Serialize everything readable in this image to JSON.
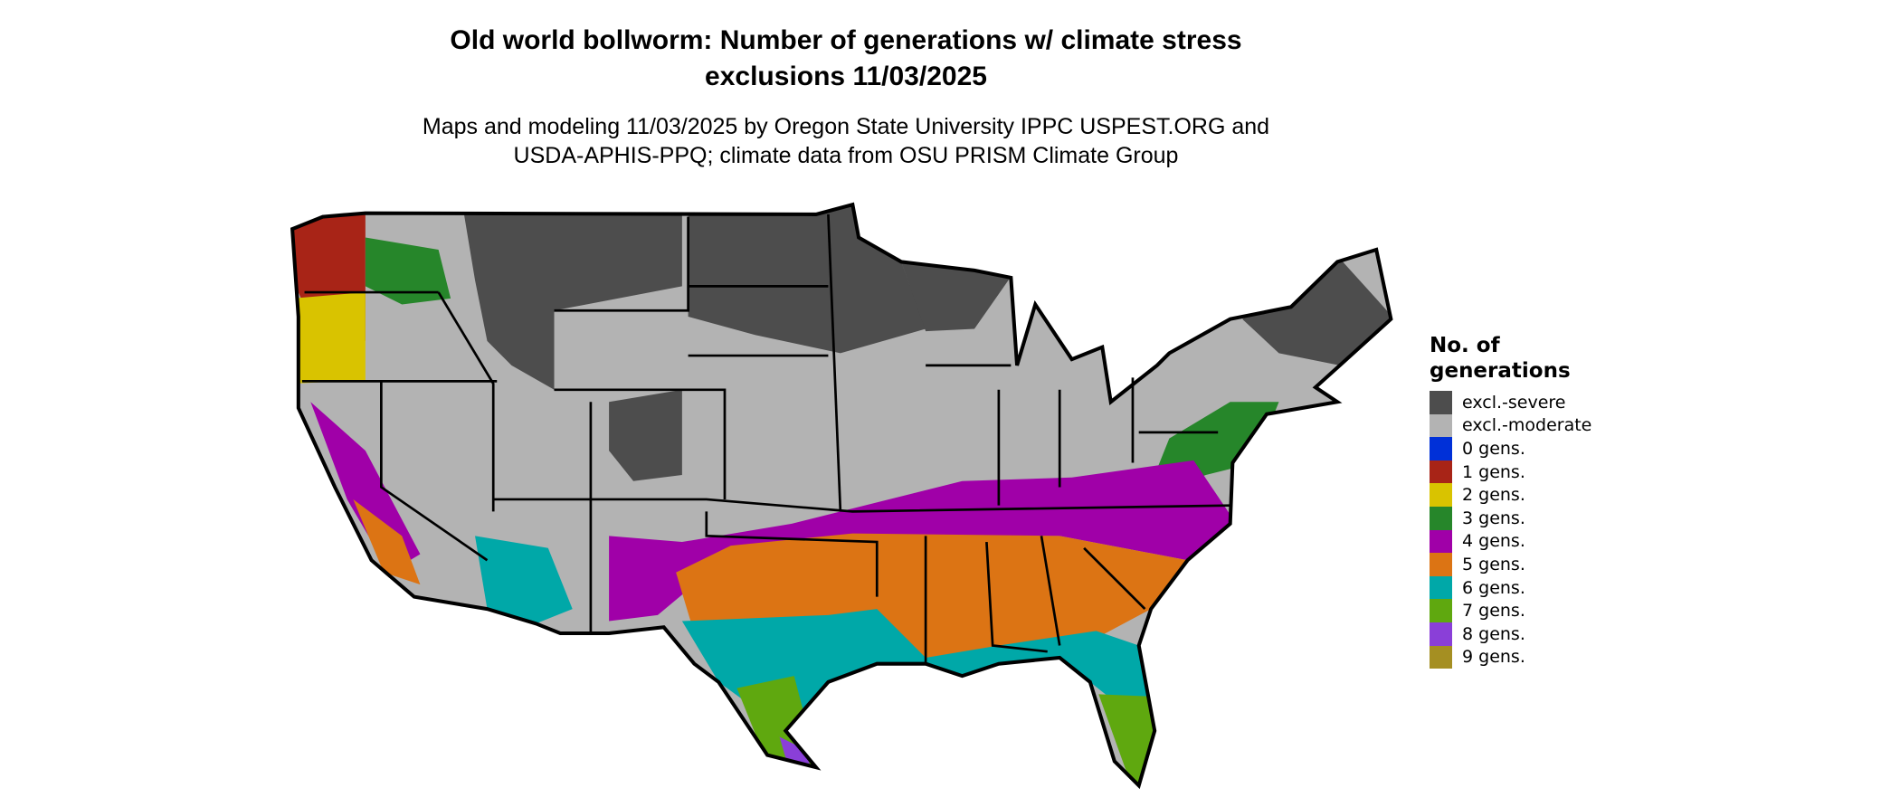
{
  "title_line1": "Old world bollworm: Number of generations w/ climate stress",
  "title_line2": "exclusions 11/03/2025",
  "subtitle_line1": "Maps and modeling 11/03/2025 by Oregon State University IPPC USPEST.ORG and",
  "subtitle_line2": "USDA-APHIS-PPQ; climate data from OSU PRISM Climate Group",
  "legend": {
    "title_line1": "No. of",
    "title_line2": "generations",
    "items": [
      {
        "label": "excl.-severe",
        "color": "#4d4d4d"
      },
      {
        "label": "excl.-moderate",
        "color": "#b3b3b3"
      },
      {
        "label": "0 gens.",
        "color": "#0030d8"
      },
      {
        "label": "1 gens.",
        "color": "#a82417"
      },
      {
        "label": "2 gens.",
        "color": "#d9c300"
      },
      {
        "label": "3 gens.",
        "color": "#26862a"
      },
      {
        "label": "4 gens.",
        "color": "#a000a8"
      },
      {
        "label": "5 gens.",
        "color": "#dc7414"
      },
      {
        "label": "6 gens.",
        "color": "#00a8a8"
      },
      {
        "label": "7 gens.",
        "color": "#5fa80f"
      },
      {
        "label": "8 gens.",
        "color": "#8a3fd8"
      },
      {
        "label": "9 gens.",
        "color": "#a58f22"
      }
    ]
  }
}
